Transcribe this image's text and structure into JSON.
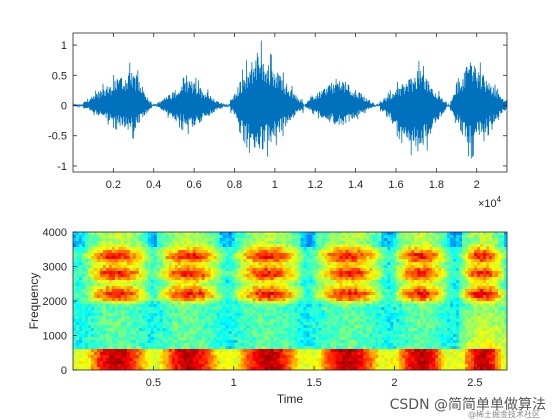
{
  "chart_data": [
    {
      "type": "line",
      "title": "",
      "xlabel": "",
      "ylabel": "",
      "x_exponent_label": "×10",
      "x_exponent_power": "4",
      "xlim": [
        0,
        21500
      ],
      "ylim": [
        -1.1,
        1.2
      ],
      "xticks": [
        2000,
        4000,
        6000,
        8000,
        10000,
        12000,
        14000,
        16000,
        18000,
        20000
      ],
      "xtick_labels": [
        "0.2",
        "0.4",
        "0.6",
        "0.8",
        "1",
        "1.2",
        "1.4",
        "1.6",
        "1.8",
        "2"
      ],
      "yticks": [
        -1,
        -0.5,
        0,
        0.5,
        1
      ],
      "ytick_labels": [
        "-1",
        "-0.5",
        "0",
        "0.5",
        "1"
      ],
      "line_color": "#0072BD",
      "bursts": [
        {
          "start": 500,
          "end": 3900,
          "peak_pos": 0.73,
          "peak_max": 0.75,
          "peak_min": -0.55
        },
        {
          "start": 4200,
          "end": 7400,
          "peak_pos": 0.5,
          "peak_max": 0.55,
          "peak_min": -0.5
        },
        {
          "start": 7800,
          "end": 11400,
          "peak_pos": 0.38,
          "peak_max": 1.15,
          "peak_min": -1.05
        },
        {
          "start": 11500,
          "end": 14900,
          "peak_pos": 0.5,
          "peak_max": 0.6,
          "peak_min": -0.45
        },
        {
          "start": 15200,
          "end": 18500,
          "peak_pos": 0.6,
          "peak_max": 0.75,
          "peak_min": -1.0
        },
        {
          "start": 18700,
          "end": 21500,
          "peak_pos": 0.35,
          "peak_max": 0.95,
          "peak_min": -0.9
        }
      ]
    },
    {
      "type": "heatmap",
      "title": "",
      "xlabel": "Time",
      "ylabel": "Frequency",
      "xlim": [
        0,
        2.7
      ],
      "ylim": [
        0,
        4000
      ],
      "xticks": [
        0.5,
        1,
        1.5,
        2,
        2.5
      ],
      "xtick_labels": [
        "0.5",
        "1",
        "1.5",
        "2",
        "2.5"
      ],
      "yticks": [
        0,
        1000,
        2000,
        3000,
        4000
      ],
      "ytick_labels": [
        "0",
        "1000",
        "2000",
        "3000",
        "4000"
      ],
      "colormap": "jet",
      "syllables": [
        {
          "start": 0.05,
          "end": 0.5
        },
        {
          "start": 0.5,
          "end": 0.95
        },
        {
          "start": 0.98,
          "end": 1.45
        },
        {
          "start": 1.48,
          "end": 1.95
        },
        {
          "start": 1.98,
          "end": 2.35
        },
        {
          "start": 2.4,
          "end": 2.7
        }
      ],
      "formant_bands_hz": [
        200,
        2200,
        2800,
        3300
      ]
    }
  ],
  "watermark": {
    "text": "CSDN @简简单单做算法",
    "subtext": "@稀土掘金技术社区"
  }
}
